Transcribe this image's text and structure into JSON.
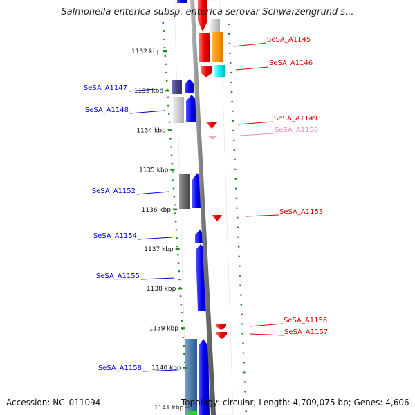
{
  "header": {
    "title": "Salmonella enterica subsp. enterica serovar Schwarzengrund s..."
  },
  "footer": {
    "accession": "Accession: NC_011094",
    "topology": "Topology: circular; Length: 4,709,075 bp; Genes: 4,606"
  },
  "colors": {
    "forward_label": "#0000cc",
    "reverse_label": "#dd0000",
    "faint_label": "#ee88bb",
    "tick": "#1e8a1e",
    "axis": "#888888"
  },
  "ruler": [
    {
      "kbp": 1132,
      "label": "1132 kbp"
    },
    {
      "kbp": 1133,
      "label": "1133 kbp"
    },
    {
      "kbp": 1134,
      "label": "1134 kbp"
    },
    {
      "kbp": 1135,
      "label": "1135 kbp"
    },
    {
      "kbp": 1136,
      "label": "1136 kbp"
    },
    {
      "kbp": 1137,
      "label": "1137 kbp"
    },
    {
      "kbp": 1138,
      "label": "1138 kbp"
    },
    {
      "kbp": 1139,
      "label": "1139 kbp"
    },
    {
      "kbp": 1140,
      "label": "1140 kbp"
    },
    {
      "kbp": 1141,
      "label": "1141 kbp"
    }
  ],
  "gene_labels": [
    {
      "name": "SeSA_A1145",
      "side": "right",
      "color": "#dd0000"
    },
    {
      "name": "SeSA_A1146",
      "side": "right",
      "color": "#dd0000"
    },
    {
      "name": "SeSA_A1147",
      "side": "left",
      "color": "#0000cc"
    },
    {
      "name": "SeSA_A1148",
      "side": "left",
      "color": "#0000cc"
    },
    {
      "name": "SeSA_A1149",
      "side": "right",
      "color": "#dd0000"
    },
    {
      "name": "SeSA_A1150",
      "side": "right",
      "color": "#ee88bb"
    },
    {
      "name": "SeSA_A1152",
      "side": "left",
      "color": "#0000cc"
    },
    {
      "name": "SeSA_A1153",
      "side": "right",
      "color": "#dd0000"
    },
    {
      "name": "SeSA_A1154",
      "side": "left",
      "color": "#0000cc"
    },
    {
      "name": "SeSA_A1155",
      "side": "left",
      "color": "#0000cc"
    },
    {
      "name": "SeSA_A1156",
      "side": "right",
      "color": "#dd0000"
    },
    {
      "name": "SeSA_A1157",
      "side": "right",
      "color": "#dd0000"
    },
    {
      "name": "SeSA_A1158",
      "side": "left",
      "color": "#0000cc"
    }
  ]
}
